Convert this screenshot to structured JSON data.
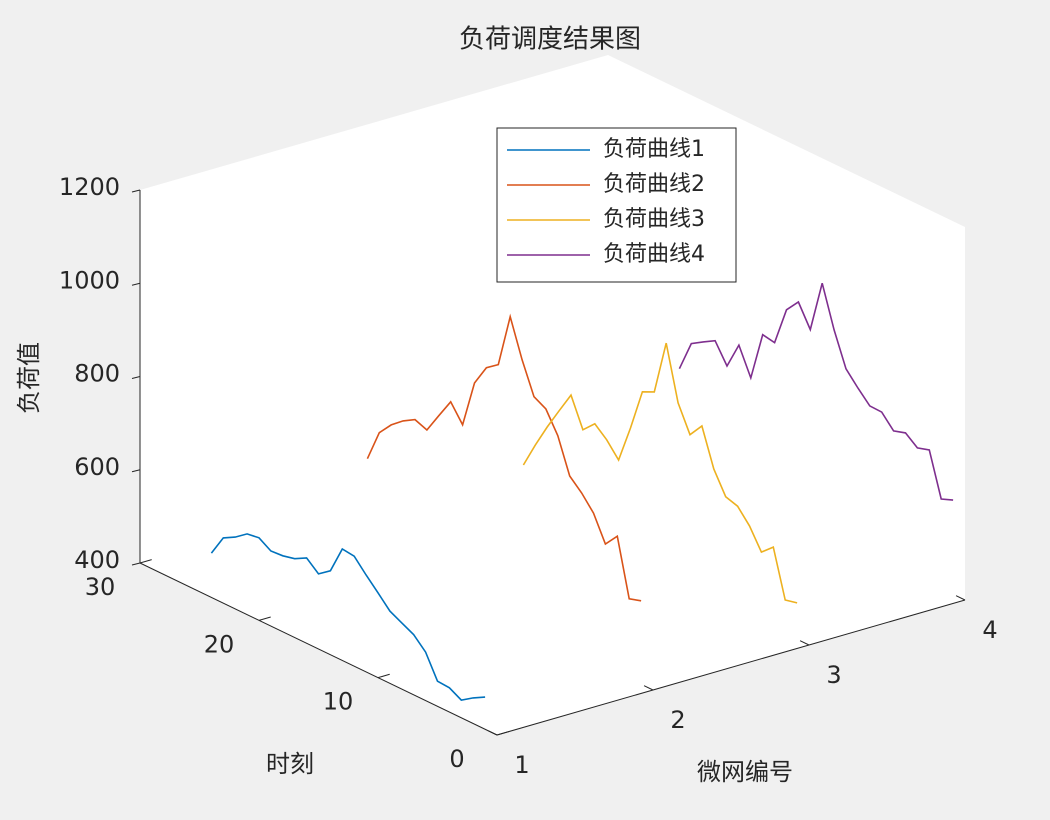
{
  "chart_data": {
    "type": "line3d",
    "title": "负荷调度结果图",
    "xlabel": "微网编号",
    "ylabel": "时刻",
    "zlabel": "负荷值",
    "x": [
      1,
      2,
      3,
      4,
      5,
      6,
      7,
      8,
      9,
      10,
      11,
      12,
      13,
      14,
      15,
      16,
      17,
      18,
      19,
      20,
      21,
      22,
      23,
      24
    ],
    "series": [
      {
        "name": "负荷曲线1",
        "color": "#0072BD",
        "microgrid": 1,
        "values": [
          469,
          455,
          438,
          452,
          454,
          504,
          529,
          542,
          555,
          582,
          608,
          636,
          639,
          580,
          561,
          583,
          569,
          563,
          561,
          577,
          573,
          554,
          540,
          495
        ]
      },
      {
        "name": "负荷曲线2",
        "color": "#D95319",
        "microgrid": 2,
        "values": [
          579,
          571,
          693,
          664,
          718,
          749,
          773,
          847,
          892,
          906,
          973,
          1053,
          938,
          919,
          874,
          772,
          809,
          767,
          724,
          734,
          719,
          698,
          669,
          601
        ]
      },
      {
        "name": "负荷曲线3",
        "color": "#EDB120",
        "microgrid": 3,
        "values": [
          478,
          472,
          573,
          550,
          594,
          624,
          632,
          679,
          759,
          728,
          784,
          900,
          783,
          771,
          681,
          600,
          631,
          653,
          628,
          690,
          644,
          597,
          546,
          491
        ]
      },
      {
        "name": "负荷曲线4",
        "color": "#7E2F8E",
        "microgrid": 4,
        "values": [
          602,
          592,
          685,
          677,
          697,
          689,
          717,
          718,
          744,
          773,
          844,
          932,
          820,
          867,
          838,
          755,
          760,
          655,
          713,
          656,
          698,
          683,
          667,
          601
        ]
      }
    ],
    "xlim": [
      1,
      4
    ],
    "xticks": [
      1,
      2,
      3,
      4
    ],
    "ylim": [
      0,
      30
    ],
    "yticks": [
      0,
      10,
      20,
      30
    ],
    "zlim": [
      400,
      1200
    ],
    "zticks": [
      400,
      600,
      800,
      1000,
      1200
    ],
    "grid": false,
    "legend_location": "north"
  }
}
